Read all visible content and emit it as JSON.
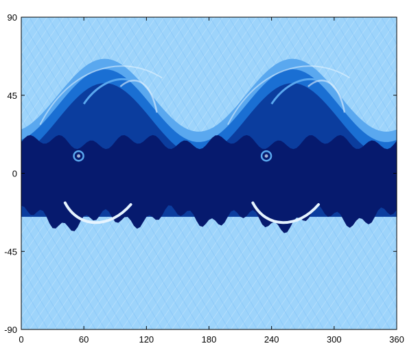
{
  "chart_data": {
    "type": "heatmap",
    "title": "",
    "xlabel": "",
    "ylabel": "",
    "xlim": [
      0,
      360
    ],
    "ylim": [
      -90,
      90
    ],
    "x_ticks": [
      0,
      60,
      120,
      180,
      240,
      300,
      360
    ],
    "y_ticks": [
      -90,
      -45,
      0,
      45,
      90
    ],
    "x_tick_labels": [
      "0",
      "60",
      "120",
      "180",
      "240",
      "300",
      "360"
    ],
    "y_tick_labels": [
      "-90",
      "-45",
      "0",
      "45",
      "90"
    ],
    "grid": false,
    "legend": "none",
    "colormap": {
      "low": "#9dd4fb",
      "mid_low": "#5aa8ef",
      "mid": "#1a6fd3",
      "mid_high": "#0b3d9e",
      "high": "#061a6e",
      "highlight": "#e6f4ff"
    },
    "features": {
      "dark_band_lat_range": [
        -25,
        18
      ],
      "wave_crest_lat": 62,
      "wave_trough_lat": 20,
      "zonal_wavenumber": 2,
      "crest_lons": [
        80,
        260
      ],
      "trough_lons": [
        200,
        20
      ]
    }
  }
}
